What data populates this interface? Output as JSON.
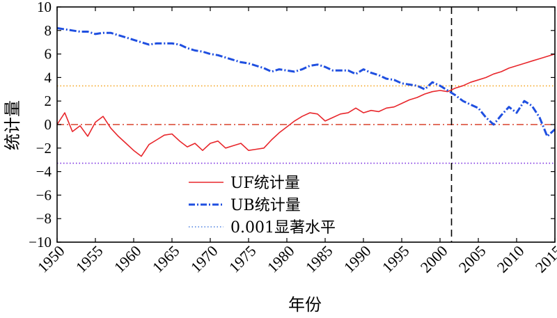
{
  "chart_data": {
    "type": "line",
    "xlabel": "年份",
    "ylabel": "统计量",
    "xlim": [
      1950,
      2015
    ],
    "ylim": [
      -10,
      10
    ],
    "x_ticks": [
      1950,
      1955,
      1960,
      1965,
      1970,
      1975,
      1980,
      1985,
      1990,
      1995,
      2000,
      2005,
      2010,
      2015
    ],
    "y_ticks": [
      -10,
      -8,
      -6,
      -4,
      -2,
      0,
      2,
      4,
      6,
      8,
      10
    ],
    "y_tick_labels": [
      "−10",
      "−8",
      "−6",
      "−4",
      "−2",
      "0",
      "2",
      "4",
      "6",
      "8",
      "10"
    ],
    "x": [
      1950,
      1951,
      1952,
      1953,
      1954,
      1955,
      1956,
      1957,
      1958,
      1959,
      1960,
      1961,
      1962,
      1963,
      1964,
      1965,
      1966,
      1967,
      1968,
      1969,
      1970,
      1971,
      1972,
      1973,
      1974,
      1975,
      1976,
      1977,
      1978,
      1979,
      1980,
      1981,
      1982,
      1983,
      1984,
      1985,
      1986,
      1987,
      1988,
      1989,
      1990,
      1991,
      1992,
      1993,
      1994,
      1995,
      1996,
      1997,
      1998,
      1999,
      2000,
      2001,
      2002,
      2003,
      2004,
      2005,
      2006,
      2007,
      2008,
      2009,
      2010,
      2011,
      2012,
      2013,
      2014,
      2015
    ],
    "series": [
      {
        "name": "UF统计量",
        "color": "#e8262b",
        "style": "solid",
        "values": [
          0,
          1.0,
          -0.6,
          -0.1,
          -1.0,
          0.2,
          0.7,
          -0.3,
          -1.0,
          -1.6,
          -2.2,
          -2.7,
          -1.7,
          -1.3,
          -0.9,
          -0.8,
          -1.4,
          -1.9,
          -1.6,
          -2.2,
          -1.6,
          -1.4,
          -2.0,
          -1.8,
          -1.6,
          -2.2,
          -2.1,
          -2.0,
          -1.3,
          -0.7,
          -0.2,
          0.3,
          0.7,
          1.0,
          0.9,
          0.3,
          0.6,
          0.9,
          1.0,
          1.4,
          1.0,
          1.2,
          1.1,
          1.4,
          1.5,
          1.8,
          2.1,
          2.3,
          2.6,
          2.8,
          2.9,
          2.8,
          3.1,
          3.3,
          3.6,
          3.8,
          4.0,
          4.3,
          4.5,
          4.8,
          5.0,
          5.2,
          5.4,
          5.6,
          5.8,
          6.0
        ]
      },
      {
        "name": "UB统计量",
        "color": "#1f4fe0",
        "style": "dashdot",
        "values": [
          8.2,
          8.1,
          8.0,
          7.9,
          7.9,
          7.7,
          7.8,
          7.8,
          7.6,
          7.4,
          7.2,
          7.0,
          6.8,
          6.9,
          6.9,
          6.9,
          6.8,
          6.5,
          6.3,
          6.2,
          6.0,
          5.9,
          5.7,
          5.5,
          5.3,
          5.2,
          5.0,
          4.8,
          4.5,
          4.7,
          4.6,
          4.5,
          4.7,
          5.0,
          5.1,
          4.9,
          4.6,
          4.6,
          4.6,
          4.3,
          4.7,
          4.4,
          4.2,
          3.9,
          3.8,
          3.5,
          3.4,
          3.3,
          3.0,
          3.6,
          3.3,
          2.9,
          2.5,
          2.0,
          1.7,
          1.4,
          0.6,
          0,
          0.8,
          1.5,
          1.0,
          2.0,
          1.6,
          0.6,
          -1.0,
          -0.4
        ]
      }
    ],
    "threshold": {
      "name": "0.001显著水平",
      "value": 3.29,
      "upper_color": "#f5a623",
      "lower_color": "#7b2fe0",
      "style": "dotted"
    },
    "zero_line": {
      "value": 0,
      "color": "#d8402a",
      "style": "dashdot"
    },
    "crossing_line": {
      "x": 2001.5,
      "color": "#000000",
      "style": "dashed"
    },
    "legend": {
      "position": "center"
    },
    "grid": false
  }
}
